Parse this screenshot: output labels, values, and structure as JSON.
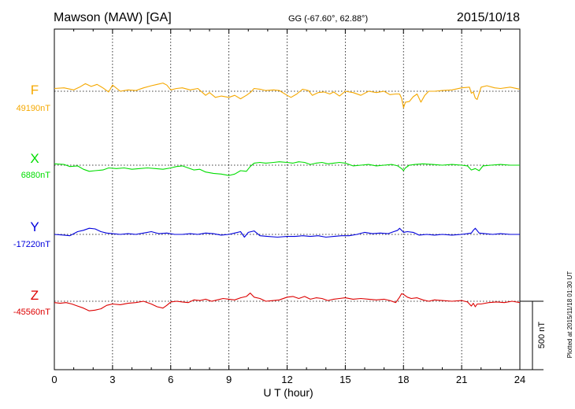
{
  "chart_data": {
    "type": "line",
    "station": "Mawson (MAW)  [GA]",
    "coords": "GG (-67.60°,  62.88°)",
    "date": "2015/10/18",
    "xlabel": "U T (hour)",
    "xlim": [
      0,
      24
    ],
    "xticks": [
      0,
      3,
      6,
      9,
      12,
      15,
      18,
      21,
      24
    ],
    "grid": true,
    "scale_label": "500 nT",
    "scale_nt": 500,
    "plotted_note": "Plotted at 2015/11/18 01:30 UT",
    "series": [
      {
        "name": "F",
        "baseline_label": "49190nT",
        "baseline_nt": 49190,
        "color": "#f5a800",
        "x": [
          0,
          0.5,
          1,
          1.3,
          1.6,
          1.9,
          2.2,
          2.5,
          2.8,
          3,
          3.4,
          3.8,
          4.2,
          4.6,
          5,
          5.3,
          5.6,
          5.8,
          6,
          6.3,
          6.6,
          7,
          7.4,
          7.8,
          8,
          8.3,
          8.6,
          9,
          9.3,
          9.6,
          9.9,
          10.1,
          10.3,
          10.6,
          10.9,
          11.3,
          11.6,
          12,
          12.2,
          12.5,
          12.8,
          13.1,
          13.3,
          13.6,
          13.9,
          14.2,
          14.4,
          14.7,
          15,
          15.4,
          15.8,
          16.2,
          16.6,
          17,
          17.3,
          17.6,
          17.8,
          17.9,
          18,
          18.1,
          18.3,
          18.5,
          18.7,
          18.9,
          19.1,
          19.3,
          19.6,
          20,
          20.5,
          21,
          21.4,
          21.5,
          21.6,
          21.7,
          21.8,
          22,
          22.3,
          22.7,
          23,
          23.5,
          24
        ],
        "y": [
          20,
          25,
          10,
          30,
          55,
          35,
          50,
          25,
          -5,
          45,
          0,
          10,
          5,
          25,
          40,
          50,
          60,
          45,
          10,
          20,
          25,
          10,
          20,
          -30,
          -10,
          -45,
          -35,
          -45,
          -30,
          -55,
          -30,
          -10,
          20,
          15,
          5,
          10,
          5,
          -30,
          -45,
          -20,
          15,
          5,
          -30,
          -10,
          -5,
          -20,
          -5,
          -35,
          0,
          -10,
          -30,
          0,
          -10,
          0,
          -25,
          -20,
          -20,
          -50,
          -120,
          -80,
          -75,
          -40,
          -20,
          -80,
          -30,
          0,
          0,
          5,
          10,
          25,
          30,
          -15,
          -5,
          -50,
          -60,
          30,
          40,
          25,
          20,
          30,
          15
        ]
      },
      {
        "name": "X",
        "baseline_label": "6880nT",
        "baseline_nt": 6880,
        "color": "#00dd00",
        "x": [
          0,
          0.5,
          0.8,
          1.2,
          1.5,
          1.8,
          2.1,
          2.5,
          2.8,
          3.2,
          3.6,
          4,
          4.4,
          4.8,
          5.2,
          5.6,
          6,
          6.3,
          6.6,
          6.9,
          7.2,
          7.5,
          7.8,
          8.2,
          8.6,
          9,
          9.3,
          9.6,
          9.9,
          10.1,
          10.3,
          10.6,
          10.9,
          11.3,
          11.6,
          12,
          12.3,
          12.6,
          12.9,
          13.2,
          13.5,
          13.8,
          14.1,
          14.4,
          14.7,
          15,
          15.4,
          15.8,
          16.2,
          16.6,
          17,
          17.4,
          17.7,
          17.9,
          18,
          18.1,
          18.3,
          18.6,
          19,
          19.5,
          20,
          20.5,
          21,
          21.3,
          21.5,
          21.7,
          21.9,
          22.1,
          22.5,
          23,
          23.5,
          24
        ],
        "y": [
          10,
          5,
          -10,
          -5,
          -30,
          -45,
          -40,
          -35,
          -20,
          -25,
          -20,
          -30,
          -25,
          -20,
          -25,
          -30,
          -20,
          -10,
          -5,
          -20,
          -35,
          -30,
          -50,
          -60,
          -65,
          -75,
          -65,
          -40,
          -45,
          -10,
          15,
          20,
          15,
          20,
          25,
          20,
          15,
          25,
          20,
          5,
          15,
          20,
          10,
          15,
          20,
          15,
          -5,
          0,
          5,
          -5,
          0,
          5,
          -5,
          -25,
          -40,
          -20,
          0,
          5,
          10,
          5,
          0,
          5,
          0,
          -5,
          -35,
          -25,
          -40,
          -5,
          0,
          5,
          0,
          0
        ]
      },
      {
        "name": "Y",
        "baseline_label": "-17220nT",
        "baseline_nt": -17220,
        "color": "#0000dd",
        "x": [
          0,
          0.5,
          0.8,
          1,
          1.2,
          1.5,
          1.8,
          2.1,
          2.4,
          2.7,
          3,
          3.4,
          3.8,
          4.2,
          4.6,
          5,
          5.4,
          5.8,
          6.2,
          6.6,
          7,
          7.4,
          7.8,
          8.2,
          8.6,
          9,
          9.3,
          9.6,
          9.8,
          10,
          10.3,
          10.6,
          11,
          11.5,
          12,
          12.4,
          12.8,
          13.2,
          13.6,
          14,
          14.4,
          14.8,
          15.2,
          15.6,
          16,
          16.4,
          16.8,
          17.2,
          17.5,
          17.7,
          17.8,
          17.9,
          18,
          18.2,
          18.5,
          18.8,
          19.2,
          19.6,
          20,
          20.5,
          21,
          21.3,
          21.5,
          21.6,
          21.7,
          21.9,
          22.2,
          22.6,
          23,
          23.5,
          24
        ],
        "y": [
          0,
          -5,
          -10,
          5,
          20,
          30,
          45,
          40,
          20,
          10,
          5,
          0,
          5,
          0,
          10,
          20,
          5,
          10,
          0,
          0,
          5,
          0,
          10,
          5,
          -5,
          0,
          10,
          20,
          -20,
          15,
          25,
          -10,
          -15,
          -20,
          -15,
          -15,
          -10,
          -15,
          -10,
          -20,
          -15,
          -10,
          -10,
          0,
          15,
          5,
          10,
          5,
          20,
          30,
          45,
          30,
          15,
          20,
          15,
          -5,
          0,
          -5,
          0,
          -5,
          0,
          5,
          10,
          30,
          45,
          10,
          5,
          0,
          5,
          0,
          0
        ]
      },
      {
        "name": "Z",
        "baseline_label": "-45560nT",
        "baseline_nt": -45560,
        "color": "#dd0000",
        "x": [
          0,
          0.3,
          0.6,
          0.9,
          1.2,
          1.5,
          1.8,
          2.1,
          2.4,
          2.7,
          3,
          3.4,
          3.8,
          4.2,
          4.6,
          5,
          5.3,
          5.6,
          5.8,
          6,
          6.3,
          6.6,
          6.9,
          7.2,
          7.5,
          7.8,
          8.1,
          8.4,
          8.7,
          9,
          9.3,
          9.6,
          9.9,
          10.1,
          10.3,
          10.6,
          10.9,
          11.3,
          11.6,
          12,
          12.3,
          12.6,
          12.9,
          13.2,
          13.5,
          13.8,
          14.1,
          14.4,
          14.7,
          15,
          15.4,
          15.8,
          16.2,
          16.6,
          17,
          17.3,
          17.6,
          17.8,
          17.9,
          18,
          18.2,
          18.4,
          18.7,
          19,
          19.3,
          19.6,
          20,
          20.5,
          21,
          21.3,
          21.5,
          21.6,
          21.7,
          21.8,
          22,
          22.4,
          22.8,
          23.2,
          23.6,
          24
        ],
        "y": [
          -10,
          -15,
          -10,
          -20,
          -35,
          -50,
          -70,
          -65,
          -55,
          -30,
          -20,
          -25,
          -15,
          -10,
          0,
          -20,
          -40,
          -50,
          -30,
          -5,
          0,
          -5,
          -10,
          10,
          5,
          15,
          0,
          10,
          20,
          15,
          10,
          25,
          35,
          60,
          30,
          20,
          0,
          5,
          10,
          30,
          35,
          20,
          35,
          15,
          25,
          20,
          5,
          15,
          20,
          25,
          15,
          20,
          15,
          10,
          15,
          5,
          -10,
          30,
          55,
          50,
          30,
          20,
          25,
          10,
          0,
          10,
          5,
          0,
          5,
          -5,
          -35,
          -15,
          -40,
          -20,
          -20,
          -10,
          -5,
          -10,
          0,
          -10
        ]
      }
    ]
  }
}
